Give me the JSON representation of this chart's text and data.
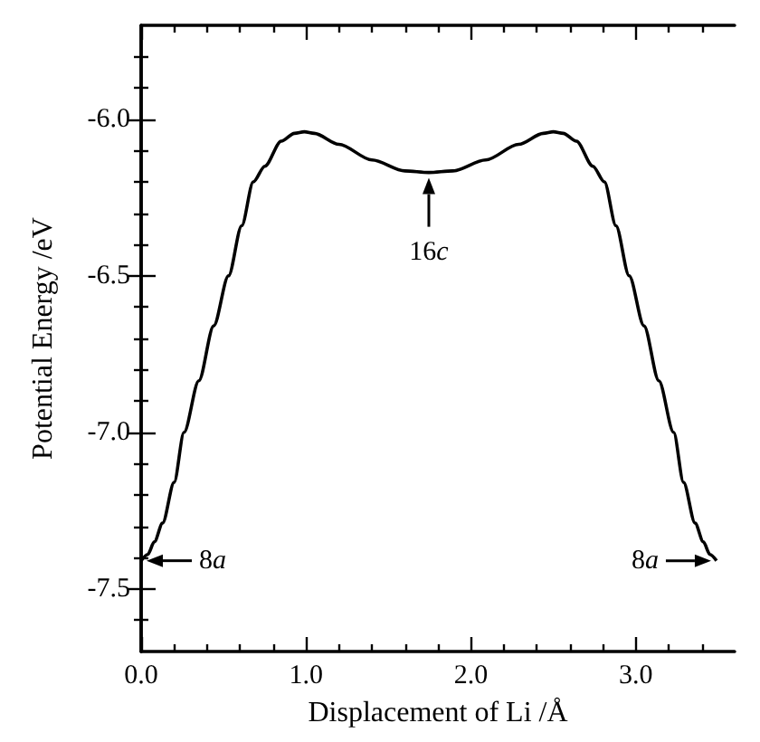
{
  "chart_data": {
    "type": "line",
    "xlabel": "Displacement of Li /Å",
    "ylabel": "Potential Energy /eV",
    "x": [
      0,
      0.04,
      0.08,
      0.13,
      0.2,
      0.26,
      0.35,
      0.44,
      0.53,
      0.61,
      0.68,
      0.75,
      0.85,
      0.93,
      0.99,
      1.05,
      1.2,
      1.4,
      1.6,
      1.745,
      1.89,
      2.09,
      2.29,
      2.44,
      2.5,
      2.56,
      2.64,
      2.74,
      2.81,
      2.88,
      2.96,
      3.05,
      3.14,
      3.23,
      3.29,
      3.36,
      3.41,
      3.45,
      3.49
    ],
    "series": [
      {
        "color": "#000000",
        "values": [
          -7.41,
          -7.39,
          -7.35,
          -7.29,
          -7.16,
          -7.0,
          -6.835,
          -6.66,
          -6.5,
          -6.34,
          -6.2,
          -6.15,
          -6.07,
          -6.045,
          -6.04,
          -6.045,
          -6.08,
          -6.13,
          -6.165,
          -6.17,
          -6.165,
          -6.13,
          -6.08,
          -6.045,
          -6.04,
          -6.045,
          -6.07,
          -6.15,
          -6.2,
          -6.34,
          -6.5,
          -6.66,
          -6.835,
          -7.0,
          -7.16,
          -7.29,
          -7.35,
          -7.39,
          -7.41
        ]
      }
    ],
    "xlim": [
      0,
      3.6
    ],
    "ylim": [
      -7.7,
      -5.7
    ],
    "xticks": [
      {
        "value": 0,
        "label": "0.0"
      },
      {
        "value": 0.2,
        "label": null
      },
      {
        "value": 0.4,
        "label": null
      },
      {
        "value": 0.6,
        "label": null
      },
      {
        "value": 0.8,
        "label": null
      },
      {
        "value": 1,
        "label": "1.0"
      },
      {
        "value": 1.2,
        "label": null
      },
      {
        "value": 1.4,
        "label": null
      },
      {
        "value": 1.6,
        "label": null
      },
      {
        "value": 1.8,
        "label": null
      },
      {
        "value": 2,
        "label": "2.0"
      },
      {
        "value": 2.2,
        "label": null
      },
      {
        "value": 2.4,
        "label": null
      },
      {
        "value": 2.6,
        "label": null
      },
      {
        "value": 2.8,
        "label": null
      },
      {
        "value": 3,
        "label": "3.0"
      },
      {
        "value": 3.2,
        "label": null
      },
      {
        "value": 3.4,
        "label": null
      }
    ],
    "yticks": [
      {
        "value": -7.6,
        "label": null
      },
      {
        "value": -7.5,
        "label": "-7.5"
      },
      {
        "value": -7.4,
        "label": null
      },
      {
        "value": -7.3,
        "label": null
      },
      {
        "value": -7.2,
        "label": null
      },
      {
        "value": -7.1,
        "label": null
      },
      {
        "value": -7,
        "label": "-7.0"
      },
      {
        "value": -6.9,
        "label": null
      },
      {
        "value": -6.8,
        "label": null
      },
      {
        "value": -6.7,
        "label": null
      },
      {
        "value": -6.6,
        "label": null
      },
      {
        "value": -6.5,
        "label": "-6.5"
      },
      {
        "value": -6.4,
        "label": null
      },
      {
        "value": -6.3,
        "label": null
      },
      {
        "value": -6.2,
        "label": null
      },
      {
        "value": -6.1,
        "label": null
      },
      {
        "value": -6,
        "label": "-6.0"
      },
      {
        "value": -5.9,
        "label": null
      },
      {
        "value": -5.8,
        "label": null
      }
    ],
    "annotations": [
      {
        "text": "16c",
        "x": 1.745,
        "y": -6.17
      },
      {
        "text": "8a",
        "x": 0,
        "y": -7.41
      },
      {
        "text": "8a",
        "x": 3.49,
        "y": -7.41
      }
    ],
    "grid": false,
    "marker": "none",
    "line_style": "solid"
  }
}
